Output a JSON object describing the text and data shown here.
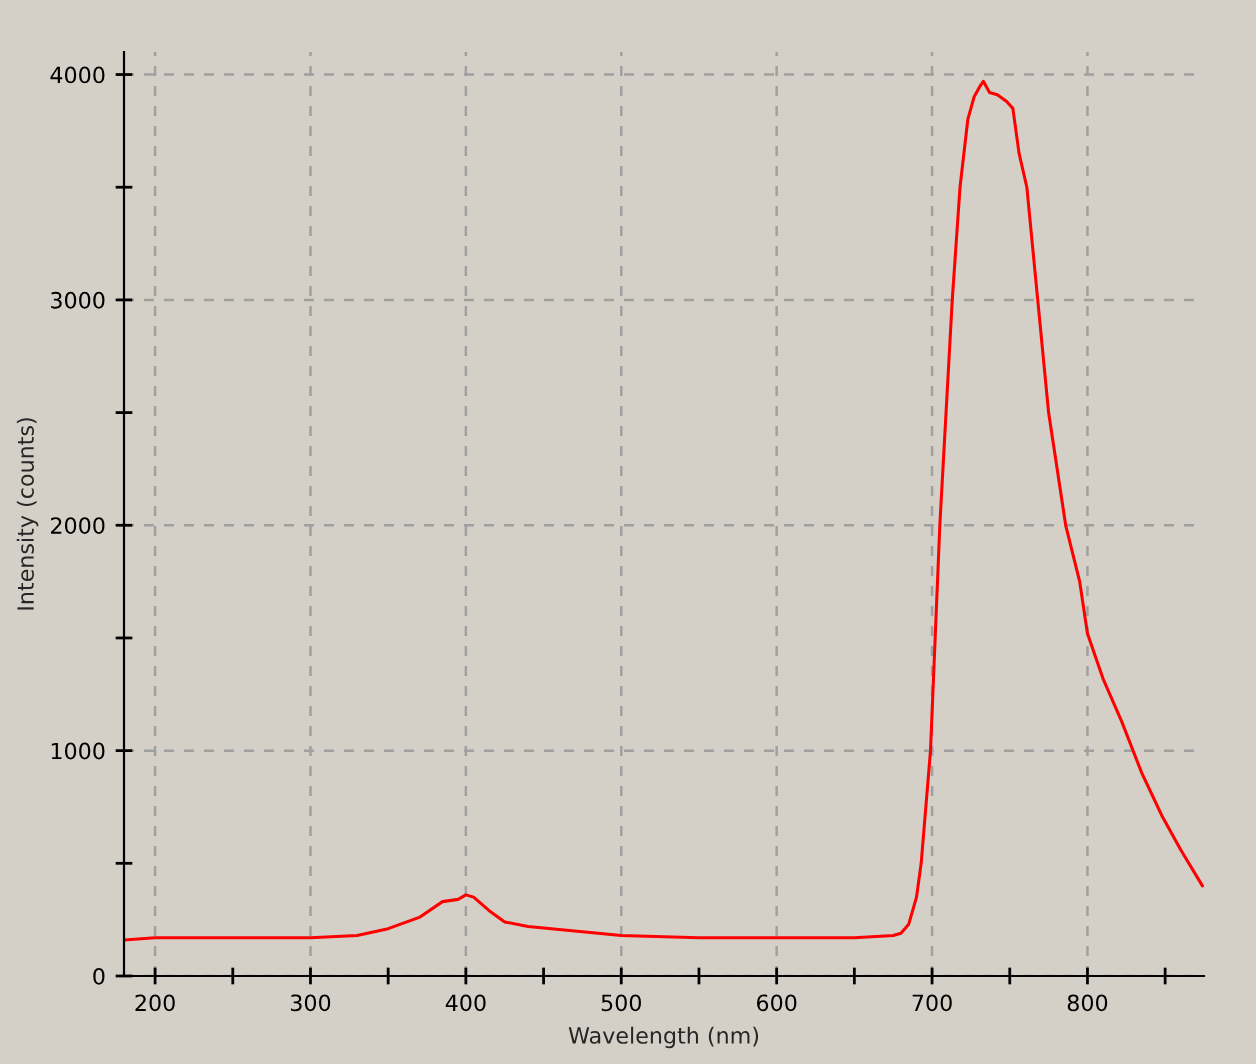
{
  "chart_data": {
    "type": "line",
    "xlabel": "Wavelength (nm)",
    "ylabel": "Intensity (counts)",
    "xlim": [
      180,
      875
    ],
    "ylim": [
      0,
      4100
    ],
    "xticks": [
      200,
      {
        "value": 250,
        "label": null
      },
      300,
      {
        "value": 350,
        "label": null
      },
      400,
      {
        "value": 450,
        "label": null
      },
      500,
      {
        "value": 550,
        "label": null
      },
      600,
      {
        "value": 650,
        "label": null
      },
      700,
      {
        "value": 750,
        "label": null
      },
      800,
      {
        "value": 850,
        "label": null
      }
    ],
    "yticks": [
      0,
      {
        "value": 500,
        "label": null
      },
      1000,
      {
        "value": 1500,
        "label": null
      },
      2000,
      {
        "value": 2500,
        "label": null
      },
      3000,
      {
        "value": 3500,
        "label": null
      },
      4000
    ],
    "grid": true,
    "line_style": "solid",
    "marker": "none",
    "series": [
      {
        "color": "#ff0000",
        "x": [
          180,
          200,
          250,
          300,
          330,
          350,
          370,
          385,
          395,
          400,
          405,
          415,
          425,
          440,
          470,
          500,
          550,
          600,
          650,
          675,
          680,
          685,
          690,
          693,
          699,
          702,
          705,
          709,
          713,
          718,
          723,
          727,
          731,
          733,
          737,
          742,
          748,
          752,
          756,
          761,
          768,
          775,
          786,
          795,
          800,
          810,
          822,
          835,
          848,
          860,
          874
        ],
        "values": [
          160,
          170,
          170,
          170,
          180,
          210,
          260,
          330,
          340,
          360,
          350,
          290,
          240,
          220,
          200,
          180,
          170,
          170,
          170,
          180,
          190,
          230,
          350,
          500,
          1000,
          1500,
          2000,
          2500,
          3000,
          3500,
          3800,
          3900,
          3950,
          3970,
          3920,
          3910,
          3880,
          3850,
          3650,
          3500,
          3000,
          2500,
          2000,
          1750,
          1520,
          1320,
          1130,
          900,
          710,
          560,
          400
        ]
      }
    ]
  }
}
